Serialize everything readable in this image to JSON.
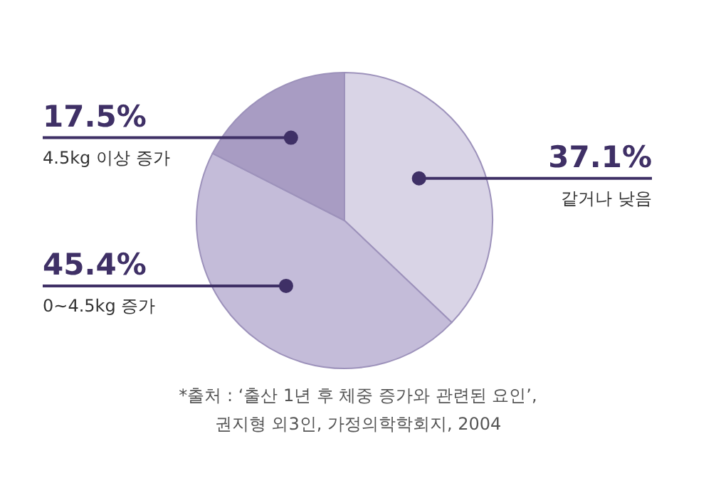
{
  "chart_data": {
    "type": "pie",
    "categories": [
      "같거나 낮음",
      "0~4.5kg 증가",
      "4.5kg 이상 증가"
    ],
    "values": [
      37.1,
      45.4,
      17.5
    ],
    "value_labels": [
      "37.1%",
      "45.4%",
      "17.5%"
    ],
    "colors": [
      "#d9d4e6",
      "#c4bcd9",
      "#a89cc3"
    ],
    "annotations": [
      "*출처 : ‘출산 1년 후 체중 증가와 관련된 요인’,",
      "권지형 외3인, 가정의학학회지, 2004"
    ]
  }
}
